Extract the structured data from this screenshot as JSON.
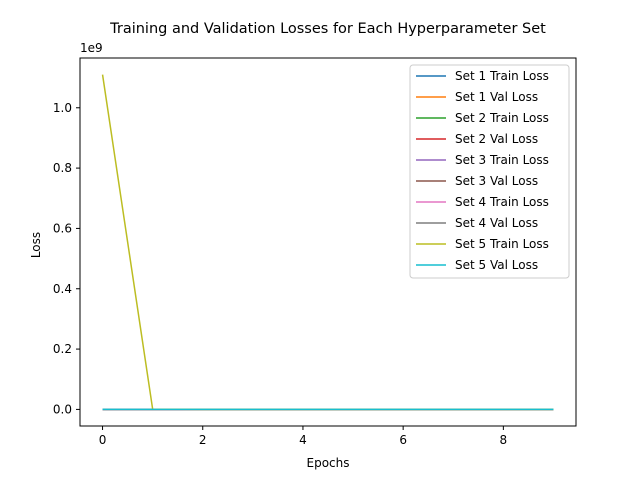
{
  "chart_data": {
    "type": "line",
    "title": "Training and Validation Losses for Each Hyperparameter Set",
    "xlabel": "Epochs",
    "ylabel": "Loss",
    "y_offset_label": "1e9",
    "y_scale_factor": 1000000000,
    "xlim": [
      -0.45,
      9.45
    ],
    "ylim": [
      -55000000,
      1165000000
    ],
    "x_ticks": [
      0,
      2,
      4,
      6,
      8
    ],
    "y_ticks": [
      0.0,
      0.2,
      0.4,
      0.6,
      0.8,
      1.0
    ],
    "y_tick_labels": [
      "0.0",
      "0.2",
      "0.4",
      "0.6",
      "0.8",
      "1.0"
    ],
    "grid": false,
    "legend_position": "top-right",
    "x": [
      0,
      1,
      2,
      3,
      4,
      5,
      6,
      7,
      8,
      9
    ],
    "series": [
      {
        "name": "Set 1 Train Loss",
        "color": "#1f77b4",
        "values": [
          0,
          0,
          0,
          0,
          0,
          0,
          0,
          0,
          0,
          0
        ]
      },
      {
        "name": "Set 1 Val Loss",
        "color": "#ff7f0e",
        "values": [
          0,
          0,
          0,
          0,
          0,
          0,
          0,
          0,
          0,
          0
        ]
      },
      {
        "name": "Set 2 Train Loss",
        "color": "#2ca02c",
        "values": [
          0,
          0,
          0,
          0,
          0,
          0,
          0,
          0,
          0,
          0
        ]
      },
      {
        "name": "Set 2 Val Loss",
        "color": "#d62728",
        "values": [
          0,
          0,
          0,
          0,
          0,
          0,
          0,
          0,
          0,
          0
        ]
      },
      {
        "name": "Set 3 Train Loss",
        "color": "#9467bd",
        "values": [
          0,
          0,
          0,
          0,
          0,
          0,
          0,
          0,
          0,
          0
        ]
      },
      {
        "name": "Set 3 Val Loss",
        "color": "#8c564b",
        "values": [
          0,
          0,
          0,
          0,
          0,
          0,
          0,
          0,
          0,
          0
        ]
      },
      {
        "name": "Set 4 Train Loss",
        "color": "#e377c2",
        "values": [
          0,
          0,
          0,
          0,
          0,
          0,
          0,
          0,
          0,
          0
        ]
      },
      {
        "name": "Set 4 Val Loss",
        "color": "#7f7f7f",
        "values": [
          0,
          0,
          0,
          0,
          0,
          0,
          0,
          0,
          0,
          0
        ]
      },
      {
        "name": "Set 5 Train Loss",
        "color": "#bcbd22",
        "values": [
          1110000000,
          1000000,
          0,
          0,
          0,
          0,
          0,
          0,
          0,
          0
        ]
      },
      {
        "name": "Set 5 Val Loss",
        "color": "#17becf",
        "values": [
          0,
          0,
          0,
          0,
          0,
          0,
          0,
          0,
          0,
          0
        ]
      }
    ]
  }
}
